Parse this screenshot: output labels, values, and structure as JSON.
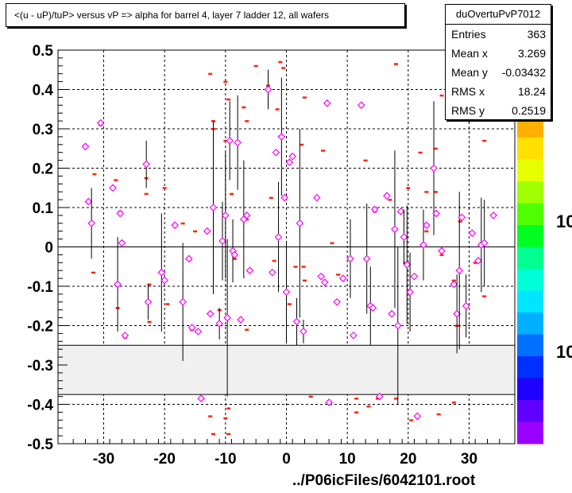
{
  "title": "<(u - uP)/tuP> versus   vP => alpha for barrel 4, layer 7 ladder 12, all wafers",
  "stats": {
    "name": "duOvertuPvP7012",
    "rows": [
      {
        "label": "Entries",
        "value": "363"
      },
      {
        "label": "Mean x",
        "value": "3.269"
      },
      {
        "label": "Mean y",
        "value": "-0.03432"
      },
      {
        "label": "RMS x",
        "value": "18.24"
      },
      {
        "label": "RMS y",
        "value": "0.2519"
      }
    ]
  },
  "footer": "../P06icFiles/6042101.root",
  "palette_labels": [
    "10",
    "10"
  ],
  "colors": {
    "marker": "#ff00ff",
    "red_mark": "#ff2200",
    "band": "#f0f0f0",
    "palette": [
      "#ff0000",
      "#ff4a00",
      "#ff7f00",
      "#ffb000",
      "#ffe000",
      "#e6ff00",
      "#a0ff00",
      "#50ff00",
      "#00ff20",
      "#00ff90",
      "#00ffd8",
      "#00e6ff",
      "#00b0ff",
      "#0070ff",
      "#0030ff",
      "#2000ff",
      "#6000ff",
      "#9a00ff"
    ]
  },
  "chart_data": {
    "type": "scatter",
    "title": "<(u - uP)/tuP> versus   vP => alpha for barrel 4, layer 7 ladder 12, all wafers",
    "xlabel": "",
    "ylabel": "",
    "xlim": [
      -37.5,
      37.5
    ],
    "ylim": [
      -0.5,
      0.5
    ],
    "xticks": [
      -30,
      -20,
      -10,
      0,
      10,
      20,
      30
    ],
    "yticks": [
      -0.5,
      -0.4,
      -0.3,
      -0.2,
      -0.1,
      0,
      0.1,
      0.2,
      0.3,
      0.4,
      0.5
    ],
    "grid": true,
    "excluded_band": [
      -0.375,
      -0.25
    ],
    "points": [
      {
        "x": -33,
        "y": 0.255,
        "err": 0
      },
      {
        "x": -32.5,
        "y": 0.115,
        "err": 0
      },
      {
        "x": -32,
        "y": 0.06,
        "err": 0.09
      },
      {
        "x": -30.5,
        "y": 0.315,
        "err": 0
      },
      {
        "x": -28.5,
        "y": 0.15,
        "err": 0
      },
      {
        "x": -27.7,
        "y": -0.095,
        "err": 0.12
      },
      {
        "x": -27.3,
        "y": 0.085,
        "err": 0
      },
      {
        "x": -27,
        "y": 0.01,
        "err": 0
      },
      {
        "x": -26.5,
        "y": -0.225,
        "err": 0
      },
      {
        "x": -23,
        "y": 0.21,
        "err": 0.06
      },
      {
        "x": -22.7,
        "y": -0.14,
        "err": 0.045
      },
      {
        "x": -20.5,
        "y": -0.065,
        "err": 0.15
      },
      {
        "x": -20,
        "y": -0.085,
        "err": 0
      },
      {
        "x": -18.3,
        "y": 0.055,
        "err": 0
      },
      {
        "x": -17,
        "y": -0.14,
        "err": 0.15
      },
      {
        "x": -16,
        "y": -0.03,
        "err": 0
      },
      {
        "x": -15.5,
        "y": -0.205,
        "err": 0
      },
      {
        "x": -14.5,
        "y": -0.215,
        "err": 0
      },
      {
        "x": -14,
        "y": -0.385,
        "err": 0
      },
      {
        "x": -13,
        "y": 0.04,
        "err": 0
      },
      {
        "x": -12.5,
        "y": -0.17,
        "err": 0
      },
      {
        "x": -12,
        "y": 0.1,
        "err": 0.22
      },
      {
        "x": -11,
        "y": -0.195,
        "err": 0.04
      },
      {
        "x": -10.5,
        "y": 0.015,
        "err": 0.1
      },
      {
        "x": -10,
        "y": 0.08,
        "err": 0.16
      },
      {
        "x": -9.7,
        "y": -0.18,
        "err": 0.2
      },
      {
        "x": -9.3,
        "y": 0.27,
        "err": 0.1
      },
      {
        "x": -8.8,
        "y": -0.01,
        "err": 0.08
      },
      {
        "x": -8.5,
        "y": -0.02,
        "err": 0
      },
      {
        "x": -8,
        "y": 0.265,
        "err": 0.12
      },
      {
        "x": -7.5,
        "y": -0.185,
        "err": 0
      },
      {
        "x": -7,
        "y": 0.07,
        "err": 0.15
      },
      {
        "x": -6.5,
        "y": 0.08,
        "err": 0
      },
      {
        "x": -6,
        "y": -0.06,
        "err": 0
      },
      {
        "x": -3,
        "y": 0.4,
        "err": 0.05
      },
      {
        "x": -2.3,
        "y": -0.065,
        "err": 0
      },
      {
        "x": -1.7,
        "y": 0.24,
        "err": 0
      },
      {
        "x": -1.3,
        "y": 0.025,
        "err": 0.14
      },
      {
        "x": -0.8,
        "y": 0.28,
        "err": 0.15
      },
      {
        "x": -0.3,
        "y": 0.125,
        "err": 0
      },
      {
        "x": 0,
        "y": -0.115,
        "err": 0.13
      },
      {
        "x": 0.5,
        "y": 0.215,
        "err": 0
      },
      {
        "x": 1,
        "y": 0.23,
        "err": 0
      },
      {
        "x": 1.7,
        "y": -0.19,
        "err": 0.06
      },
      {
        "x": 2.2,
        "y": 0.06,
        "err": 0.24
      },
      {
        "x": 2.8,
        "y": -0.215,
        "err": 0.03
      },
      {
        "x": 5,
        "y": 0.125,
        "err": 0
      },
      {
        "x": 5.7,
        "y": -0.075,
        "err": 0
      },
      {
        "x": 6.3,
        "y": -0.09,
        "err": 0
      },
      {
        "x": 6.7,
        "y": 0.365,
        "err": 0
      },
      {
        "x": 7,
        "y": -0.395,
        "err": 0
      },
      {
        "x": 8.3,
        "y": -0.14,
        "err": 0
      },
      {
        "x": 9.3,
        "y": -0.08,
        "err": 0
      },
      {
        "x": 10.5,
        "y": -0.03,
        "err": 0.1
      },
      {
        "x": 11,
        "y": -0.225,
        "err": 0
      },
      {
        "x": 12.3,
        "y": 0.36,
        "err": 0
      },
      {
        "x": 13.2,
        "y": -0.03,
        "err": 0.14
      },
      {
        "x": 13.8,
        "y": -0.15,
        "err": 0.1
      },
      {
        "x": 14.2,
        "y": -0.155,
        "err": 0
      },
      {
        "x": 14.5,
        "y": 0.095,
        "err": 0
      },
      {
        "x": 15.3,
        "y": -0.38,
        "err": 0
      },
      {
        "x": 16.5,
        "y": 0.13,
        "err": 0
      },
      {
        "x": 17.3,
        "y": -0.17,
        "err": 0
      },
      {
        "x": 17.8,
        "y": 0.045,
        "err": 0.2
      },
      {
        "x": 18.3,
        "y": -0.2,
        "err": 0.2
      },
      {
        "x": 18.8,
        "y": 0.09,
        "err": 0
      },
      {
        "x": 19.3,
        "y": 0.025,
        "err": 0.07
      },
      {
        "x": 19.8,
        "y": -0.045,
        "err": 0.15
      },
      {
        "x": 20.3,
        "y": -0.115,
        "err": 0.1
      },
      {
        "x": 21,
        "y": -0.075,
        "err": 0
      },
      {
        "x": 21.5,
        "y": -0.43,
        "err": 0
      },
      {
        "x": 22.5,
        "y": 0.005,
        "err": 0.09
      },
      {
        "x": 23,
        "y": 0.055,
        "err": 0
      },
      {
        "x": 24.2,
        "y": 0.2,
        "err": 0.17
      },
      {
        "x": 24.6,
        "y": 0.085,
        "err": 0
      },
      {
        "x": 25.5,
        "y": -0.01,
        "err": 0
      },
      {
        "x": 27.5,
        "y": -0.095,
        "err": 0
      },
      {
        "x": 28,
        "y": -0.17,
        "err": 0.1
      },
      {
        "x": 28.4,
        "y": -0.06,
        "err": 0.2
      },
      {
        "x": 28.8,
        "y": 0.075,
        "err": 0
      },
      {
        "x": 29.5,
        "y": -0.15,
        "err": 0.08
      },
      {
        "x": 30.5,
        "y": 0.035,
        "err": 0
      },
      {
        "x": 31.5,
        "y": -0.035,
        "err": 0
      },
      {
        "x": 32,
        "y": 0.005,
        "err": 0.12
      },
      {
        "x": 32.5,
        "y": 0.01,
        "err": 0.11
      },
      {
        "x": 34,
        "y": 0.08,
        "err": 0
      }
    ],
    "red_marks": [
      [
        -31.5,
        0.185
      ],
      [
        -31.7,
        -0.065
      ],
      [
        -28,
        0.17
      ],
      [
        -27.7,
        -0.155
      ],
      [
        -26.5,
        -0.23
      ],
      [
        -23,
        0.175
      ],
      [
        -23,
        0.135
      ],
      [
        -22.5,
        -0.095
      ],
      [
        -22.5,
        -0.19
      ],
      [
        -20,
        0.15
      ],
      [
        -19.5,
        -0.145
      ],
      [
        -17,
        0.06
      ],
      [
        -15,
        0.04
      ],
      [
        -12.5,
        0.44
      ],
      [
        -12,
        0.32
      ],
      [
        -11,
        -0.16
      ],
      [
        -10,
        0.27
      ],
      [
        -10,
        0.42
      ],
      [
        -9.5,
        0.375
      ],
      [
        -9,
        0.135
      ],
      [
        -8.5,
        -0.02
      ],
      [
        -7,
        0.355
      ],
      [
        -6.5,
        0.32
      ],
      [
        -6.5,
        0.07
      ],
      [
        -6.5,
        -0.21
      ],
      [
        -5,
        0.46
      ],
      [
        -2.5,
        0.125
      ],
      [
        -2,
        -0.035
      ],
      [
        -1.5,
        0.35
      ],
      [
        -1,
        0.47
      ],
      [
        -0.5,
        0.455
      ],
      [
        0.5,
        -0.145
      ],
      [
        1.5,
        -0.05
      ],
      [
        2.5,
        0.26
      ],
      [
        2.8,
        -0.05
      ],
      [
        3,
        -0.085
      ],
      [
        3,
        0.38
      ],
      [
        6,
        0.245
      ],
      [
        7.5,
        0.01
      ],
      [
        8.5,
        -0.07
      ],
      [
        10.5,
        -0.03
      ],
      [
        13,
        0.22
      ],
      [
        13.5,
        -0.15
      ],
      [
        14.5,
        0.1
      ],
      [
        18,
        0.465
      ],
      [
        19.5,
        -0.04
      ],
      [
        20,
        0.15
      ],
      [
        21,
        -0.075
      ],
      [
        22,
        0.24
      ],
      [
        23,
        0.14
      ],
      [
        24.5,
        0.14
      ],
      [
        25.5,
        0.385
      ],
      [
        25.5,
        -0.02
      ],
      [
        27.5,
        -0.085
      ],
      [
        28,
        -0.2
      ],
      [
        28.5,
        0.065
      ],
      [
        31,
        -0.04
      ],
      [
        32.5,
        -0.125
      ],
      [
        32.5,
        0.27
      ],
      [
        -12,
        -0.475
      ],
      [
        -10,
        -0.435
      ],
      [
        -12.5,
        -0.43
      ],
      [
        -9.5,
        -0.475
      ],
      [
        -14,
        -0.385
      ],
      [
        11.5,
        -0.385
      ],
      [
        11.5,
        -0.42
      ],
      [
        13.5,
        -0.405
      ],
      [
        15,
        -0.385
      ],
      [
        18,
        -0.385
      ],
      [
        20.5,
        -0.44
      ],
      [
        25,
        -0.425
      ],
      [
        27.5,
        -0.395
      ],
      [
        -9.5,
        -0.41
      ],
      [
        24.5,
        0.25
      ],
      [
        23,
        0.04
      ],
      [
        -8.5,
        -0.03
      ],
      [
        4,
        -0.38
      ],
      [
        -15.5,
        -0.21
      ],
      [
        17,
        0.12
      ],
      [
        -3,
        0.41
      ],
      [
        -12,
        0.3
      ],
      [
        -27.3,
        0.09
      ],
      [
        -30.5,
        0.31
      ],
      [
        14.5,
        0.09
      ],
      [
        -1,
        0.28
      ]
    ]
  }
}
